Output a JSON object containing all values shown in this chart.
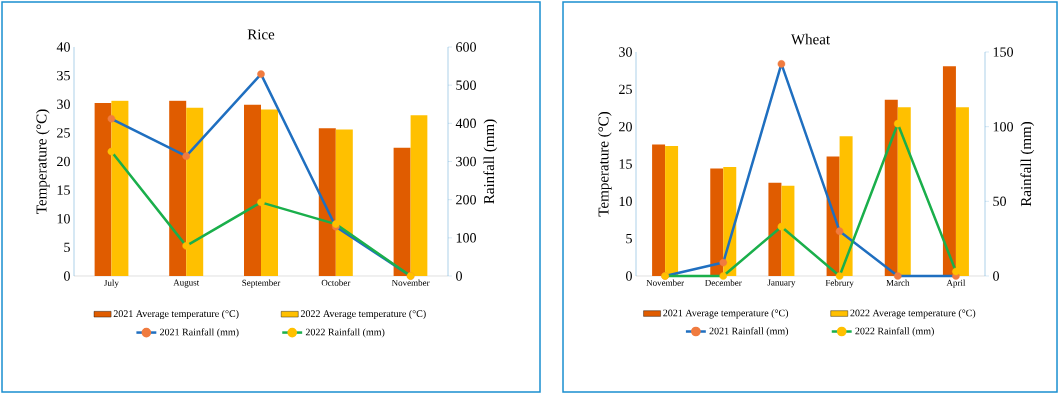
{
  "chart_data": [
    {
      "type": "bar",
      "title": "Rice",
      "ylabel": "Temperature (°C)",
      "y2label": "Rainfall (mm)",
      "categories": [
        "July",
        "August",
        "September",
        "October",
        "November"
      ],
      "series": [
        {
          "name": "2021 Average temperature (°C)",
          "color": "#e05c00",
          "values": [
            30.2,
            30.6,
            29.9,
            25.8,
            22.4
          ]
        },
        {
          "name": "2022 Average temperature (°C)",
          "color": "#ffc000",
          "values": [
            30.6,
            29.4,
            29.1,
            25.6,
            28.1
          ]
        },
        {
          "name": "2021 Rainfall (mm)",
          "type": "line",
          "axis": "y2",
          "color": "#1f6fc0",
          "colors": [
            "#f07b3f",
            "#f07b3f",
            "#f07b3f",
            "#f07b3f",
            "#f07b3f"
          ],
          "values": [
            412,
            314,
            529,
            129,
            0
          ]
        },
        {
          "name": "2022 Rainfall (mm)",
          "type": "line",
          "axis": "y2",
          "color": "#1aaf4b",
          "colors": [
            "#ffc000",
            "#ffc000",
            "#ffc000",
            "#ffc000",
            "#ffc000"
          ],
          "values": [
            326,
            79,
            193,
            136,
            0
          ]
        }
      ],
      "ylim": [
        0,
        40
      ],
      "yticks": [
        0,
        5,
        10,
        15,
        20,
        25,
        30,
        35,
        40
      ],
      "y2lim": [
        0,
        600
      ],
      "y2ticks": [
        0,
        100,
        200,
        300,
        400,
        500,
        600
      ],
      "legend": "bottom",
      "marker": "circle",
      "line_style": "solid",
      "grid": false
    },
    {
      "type": "bar",
      "title": "Wheat",
      "ylabel": "Temperature (°C)",
      "y2label": "Rainfall (mm)",
      "categories": [
        "November",
        "December",
        "January",
        "Februry",
        "March",
        "April"
      ],
      "series": [
        {
          "name": "2021 Average temperature (°C)",
          "color": "#e05c00",
          "values": [
            17.6,
            14.4,
            12.5,
            16.0,
            23.6,
            28.1
          ]
        },
        {
          "name": "2022 Average temperature (°C)",
          "color": "#ffc000",
          "values": [
            17.4,
            14.6,
            12.1,
            18.7,
            22.6,
            22.6
          ]
        },
        {
          "name": "2021 Rainfall (mm)",
          "type": "line",
          "axis": "y2",
          "color": "#1f6fc0",
          "colors": [
            "#f07b3f",
            "#f07b3f",
            "#f07b3f",
            "#f07b3f",
            "#f07b3f",
            "#f07b3f"
          ],
          "values": [
            0,
            9,
            142,
            30,
            0,
            0
          ]
        },
        {
          "name": "2022 Rainfall (mm)",
          "type": "line",
          "axis": "y2",
          "color": "#1aaf4b",
          "colors": [
            "#ffc000",
            "#ffc000",
            "#ffc000",
            "#ffc000",
            "#ffc000",
            "#ffc000"
          ],
          "values": [
            0,
            0,
            33,
            0,
            102,
            3
          ]
        }
      ],
      "ylim": [
        0,
        30
      ],
      "yticks": [
        0,
        5,
        10,
        15,
        20,
        25,
        30
      ],
      "y2lim": [
        0,
        150
      ],
      "y2ticks": [
        0,
        50,
        100,
        150
      ],
      "legend": "bottom",
      "marker": "circle",
      "line_style": "solid",
      "grid": false
    }
  ]
}
